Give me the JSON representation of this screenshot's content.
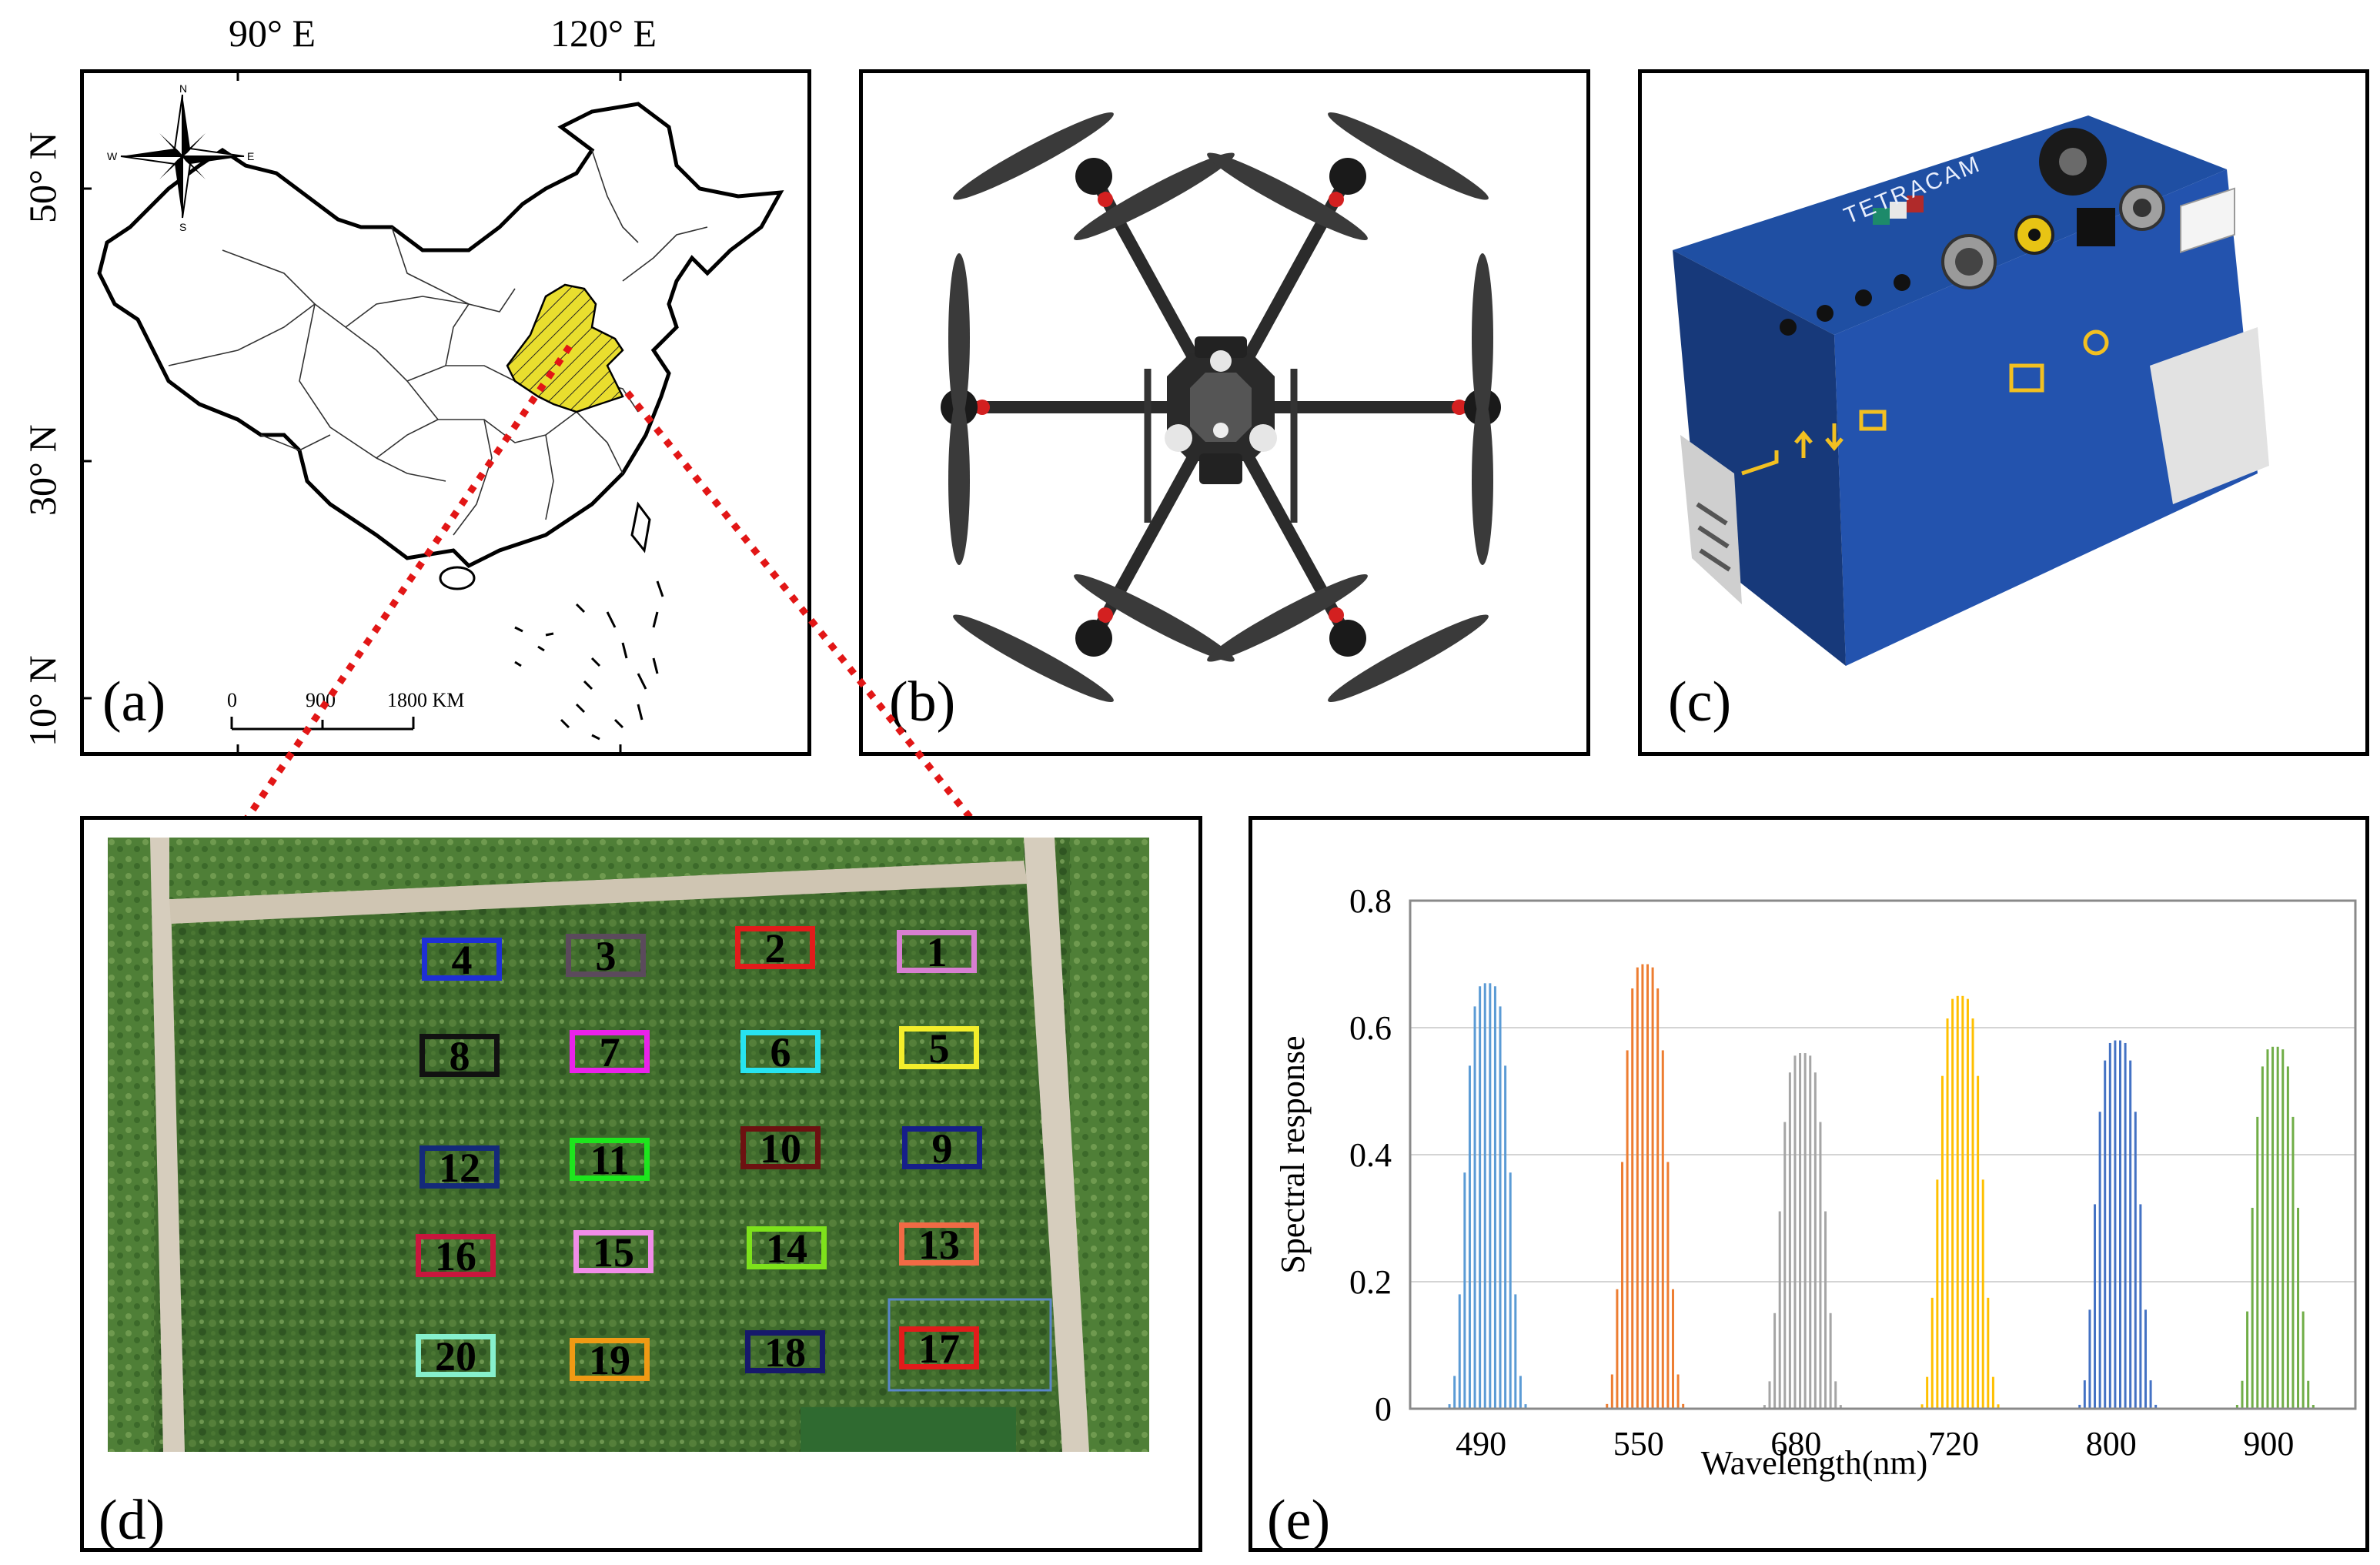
{
  "figure": {
    "panels": {
      "a": {
        "label": "(a)",
        "top_longitudes": [
          "90° E",
          "120° E"
        ],
        "latitudes": [
          "50° N",
          "30° N",
          "10° N"
        ],
        "compass": {
          "n": "N",
          "s": "S",
          "e": "E",
          "w": "W"
        },
        "scale_bar": {
          "ticks": [
            "0",
            "900",
            "1800 KM"
          ]
        },
        "highlight_color": "#e9de2e"
      },
      "b": {
        "label": "(b)"
      },
      "c": {
        "label": "(c)",
        "camera_brand": "TETRACAM",
        "body_color": "#1f4fa3"
      },
      "d": {
        "label": "(d)",
        "plots": [
          {
            "id": "1",
            "color": "#d77fd1"
          },
          {
            "id": "2",
            "color": "#e21b1b"
          },
          {
            "id": "3",
            "color": "#5b4a5c"
          },
          {
            "id": "4",
            "color": "#1e2fd6"
          },
          {
            "id": "5",
            "color": "#f3ee2b"
          },
          {
            "id": "6",
            "color": "#27e4f0"
          },
          {
            "id": "7",
            "color": "#ea21ea"
          },
          {
            "id": "8",
            "color": "#111111"
          },
          {
            "id": "9",
            "color": "#161e8a"
          },
          {
            "id": "10",
            "color": "#6d1111"
          },
          {
            "id": "11",
            "color": "#1de61d"
          },
          {
            "id": "12",
            "color": "#142a7a"
          },
          {
            "id": "13",
            "color": "#f26a45"
          },
          {
            "id": "14",
            "color": "#7ee21b"
          },
          {
            "id": "15",
            "color": "#f08de8"
          },
          {
            "id": "16",
            "color": "#c8163d"
          },
          {
            "id": "17",
            "color": "#e21b1b"
          },
          {
            "id": "18",
            "color": "#16196b"
          },
          {
            "id": "19",
            "color": "#f09a14"
          },
          {
            "id": "20",
            "color": "#86f0cd"
          }
        ]
      },
      "e": {
        "label": "(e)"
      }
    }
  },
  "chart_data": {
    "type": "bar",
    "title": "",
    "xlabel": "Wavelength(nm)",
    "ylabel": "Spectral response",
    "ylim": [
      0,
      0.8
    ],
    "yticks": [
      "0",
      "0.2",
      "0.4",
      "0.6",
      "0.8"
    ],
    "grid": "horizontal",
    "bands": [
      {
        "name": "490",
        "color": "#5b9bd5",
        "peak": 0.67
      },
      {
        "name": "550",
        "color": "#ed7d31",
        "peak": 0.7
      },
      {
        "name": "680",
        "color": "#a5a5a5",
        "peak": 0.56
      },
      {
        "name": "720",
        "color": "#ffc000",
        "peak": 0.65
      },
      {
        "name": "800",
        "color": "#4472c4",
        "peak": 0.58
      },
      {
        "name": "900",
        "color": "#70ad47",
        "peak": 0.57
      }
    ]
  }
}
